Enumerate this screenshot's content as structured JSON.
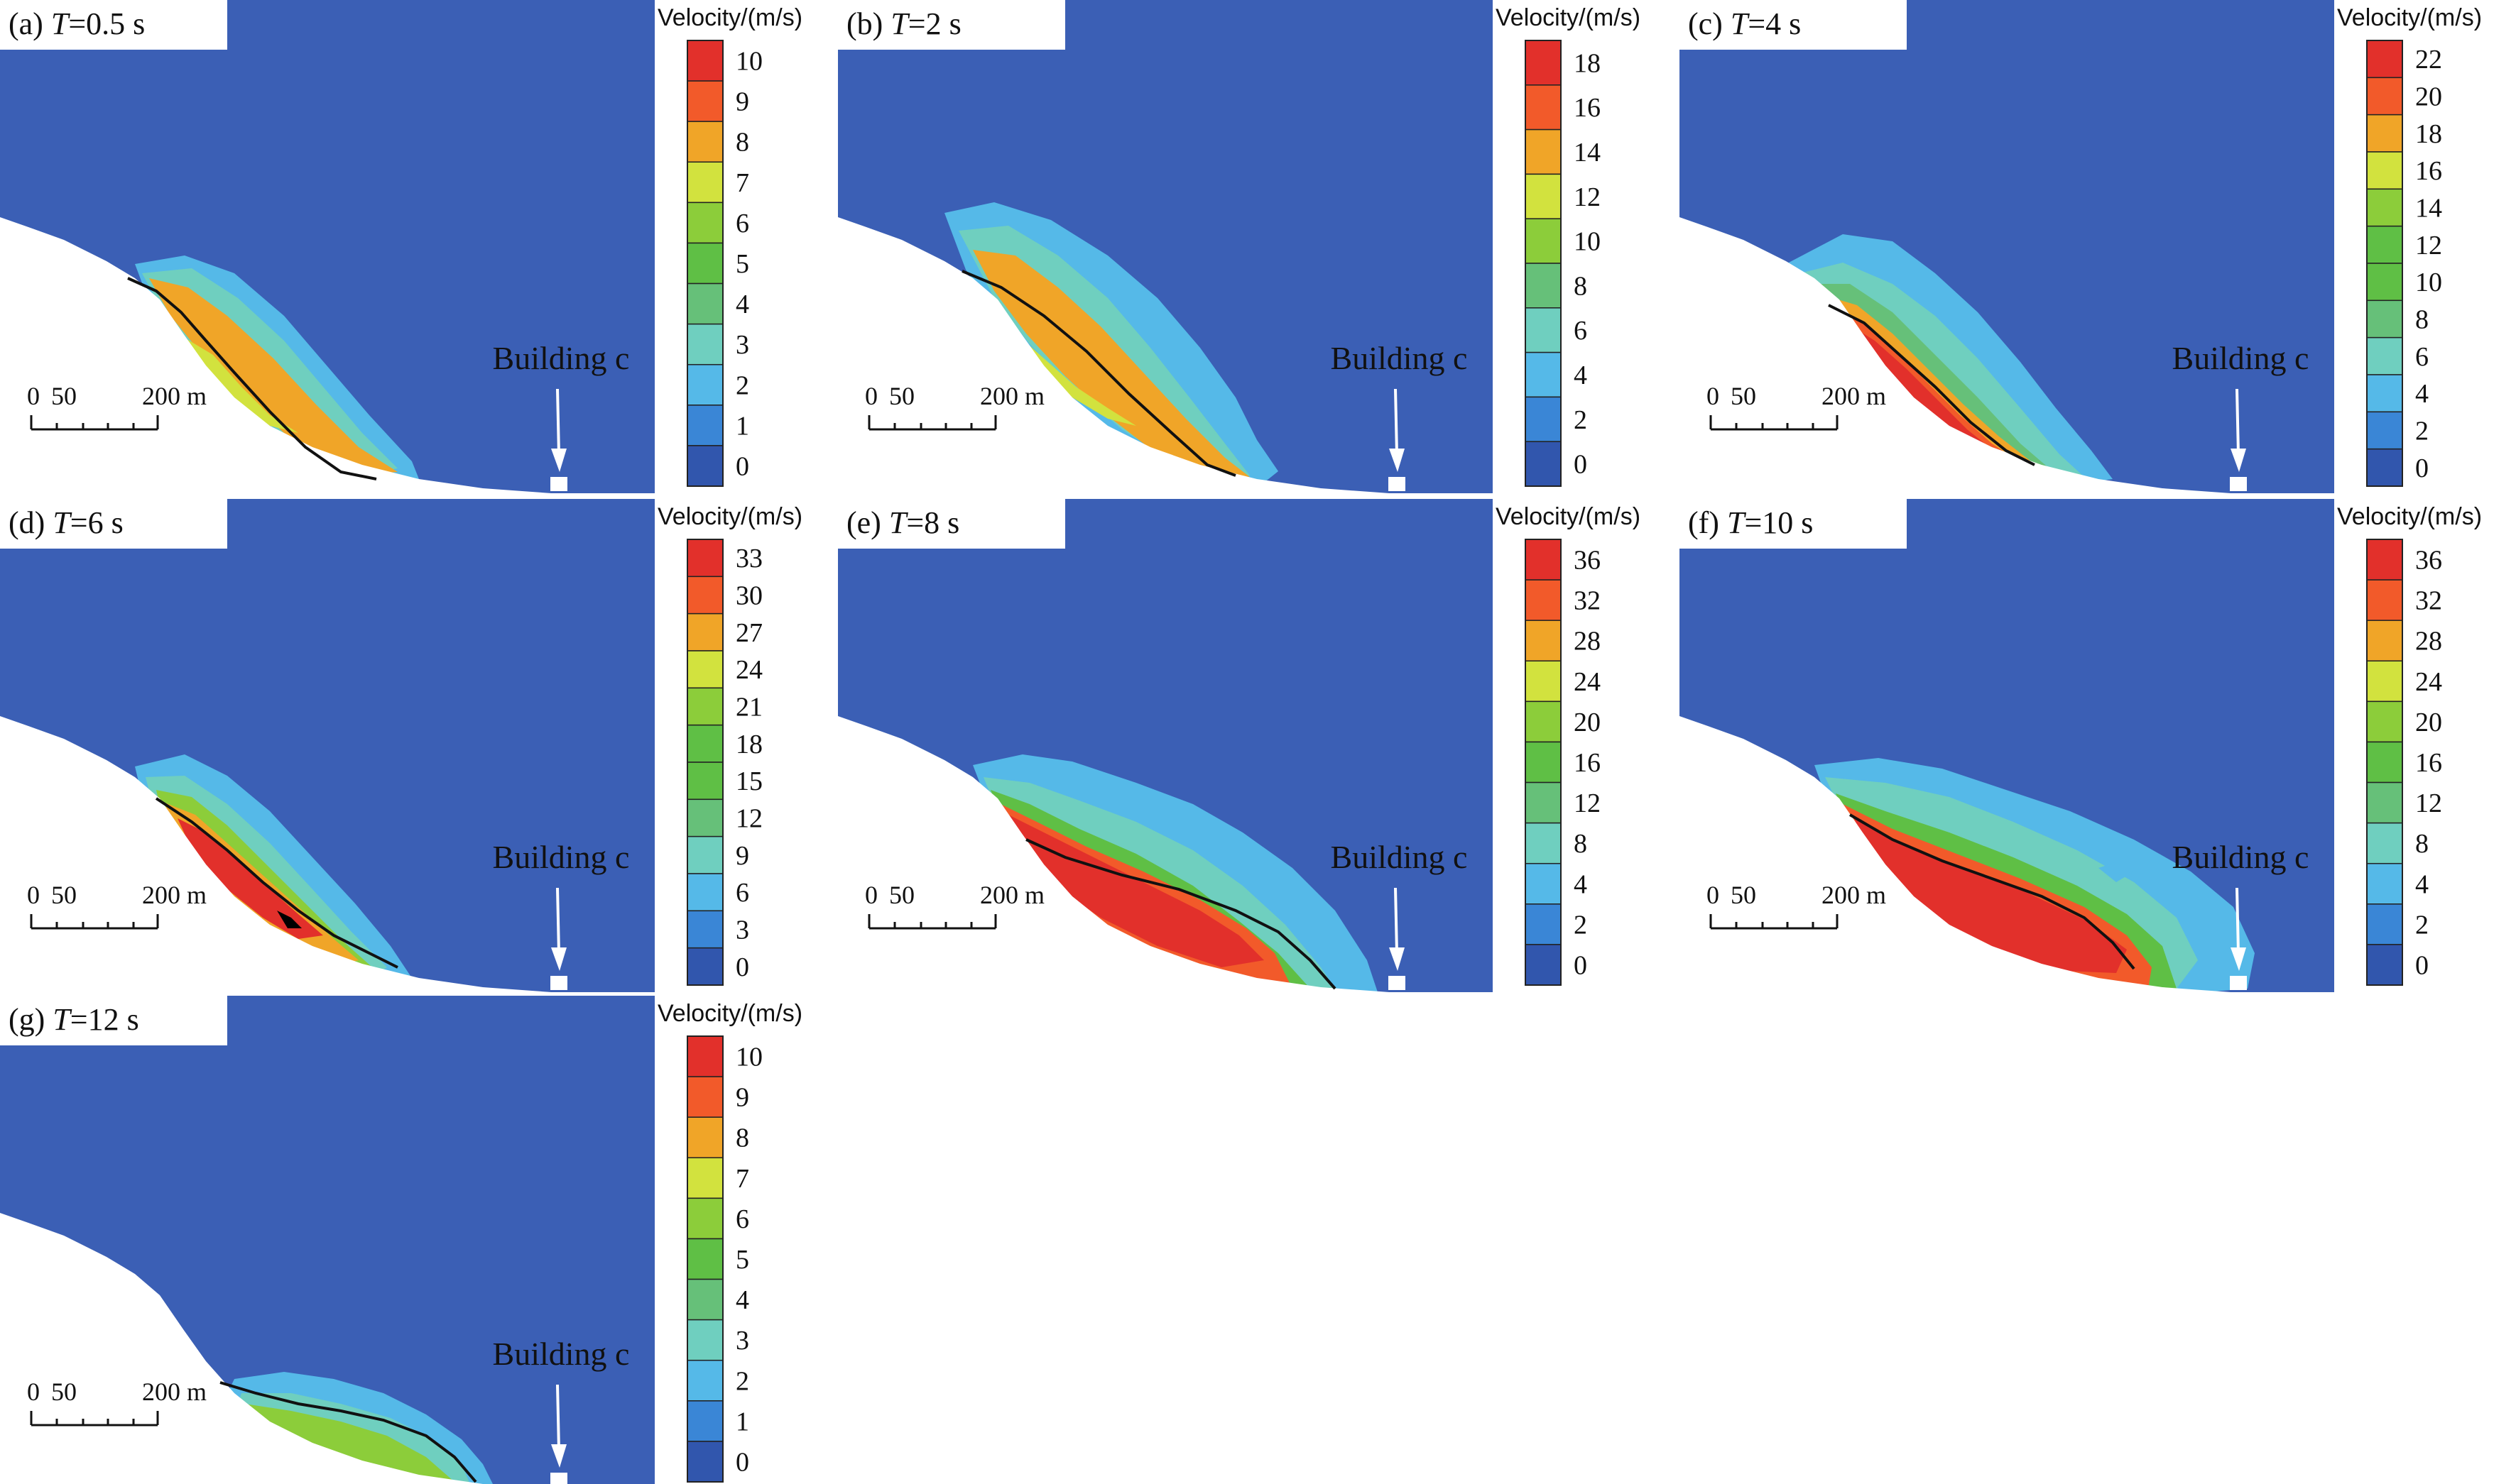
{
  "colors": {
    "air": "#3b5fb5",
    "ground": "#ffffff",
    "scale_levels": [
      "#3156ad",
      "#3a86d6",
      "#55b9e8",
      "#6fcfbf",
      "#66c079",
      "#5fbf45",
      "#8ccd3a",
      "#d2e23e",
      "#f0a528",
      "#f25a2a",
      "#e2302b"
    ],
    "centerline": "#111111",
    "building_marker": "#ffffff"
  },
  "legend_title": "Velocity/(m/s)",
  "building_label": "Building c",
  "scalebar": {
    "labels": [
      "0",
      "50",
      "200 m"
    ]
  },
  "panels": [
    {
      "id": "a",
      "prefix": "(a) ",
      "var": "T",
      "eq": "=0.5 s",
      "ticks": [
        "10",
        "9",
        "8",
        "7",
        "6",
        "5",
        "4",
        "3",
        "2",
        "1",
        "0"
      ],
      "stage": 0
    },
    {
      "id": "b",
      "prefix": "(b) ",
      "var": "T",
      "eq": "=2 s",
      "ticks": [
        "18",
        "16",
        "14",
        "12",
        "10",
        "8",
        "6",
        "4",
        "2",
        "0"
      ],
      "stage": 1
    },
    {
      "id": "c",
      "prefix": "(c) ",
      "var": "T",
      "eq": "=4 s",
      "ticks": [
        "22",
        "20",
        "18",
        "16",
        "14",
        "12",
        "10",
        "8",
        "6",
        "4",
        "2",
        "0"
      ],
      "stage": 2
    },
    {
      "id": "d",
      "prefix": "(d) ",
      "var": "T",
      "eq": "=6 s",
      "ticks": [
        "33",
        "30",
        "27",
        "24",
        "21",
        "18",
        "15",
        "12",
        "9",
        "6",
        "3",
        "0"
      ],
      "stage": 3
    },
    {
      "id": "e",
      "prefix": "(e) ",
      "var": "T",
      "eq": "=8 s",
      "ticks": [
        "36",
        "32",
        "28",
        "24",
        "20",
        "16",
        "12",
        "8",
        "4",
        "2",
        "0"
      ],
      "stage": 4
    },
    {
      "id": "f",
      "prefix": "(f) ",
      "var": "T",
      "eq": "=10 s",
      "ticks": [
        "36",
        "32",
        "28",
        "24",
        "20",
        "16",
        "12",
        "8",
        "4",
        "2",
        "0"
      ],
      "stage": 5
    },
    {
      "id": "g",
      "prefix": "(g) ",
      "var": "T",
      "eq": "=12 s",
      "ticks": [
        "10",
        "9",
        "8",
        "7",
        "6",
        "5",
        "4",
        "3",
        "2",
        "1",
        "0"
      ],
      "stage": 6
    }
  ]
}
